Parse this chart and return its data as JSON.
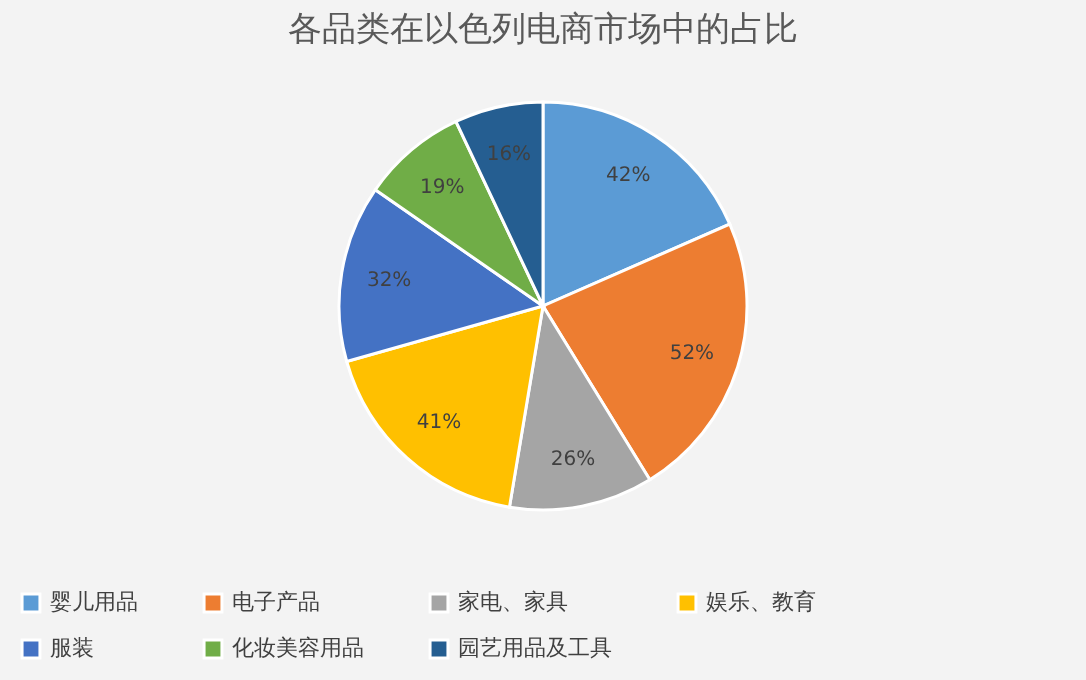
{
  "chart_data": {
    "type": "pie",
    "title": "各品类在以色列电商市场中的占比",
    "categories": [
      "婴儿用品",
      "电子产品",
      "家电、家具",
      "娱乐、教育",
      "服装",
      "化妆美容用品",
      "园艺用品及工具"
    ],
    "values": [
      42,
      52,
      26,
      41,
      32,
      19,
      16
    ],
    "colors": [
      "#5b9bd5",
      "#ed7d31",
      "#a5a5a5",
      "#ffc000",
      "#4472c4",
      "#70ad47",
      "#255e91"
    ],
    "value_labels": [
      "42%",
      "52%",
      "26%",
      "41%",
      "32%",
      "19%",
      "16%"
    ],
    "legend": "bottom"
  }
}
